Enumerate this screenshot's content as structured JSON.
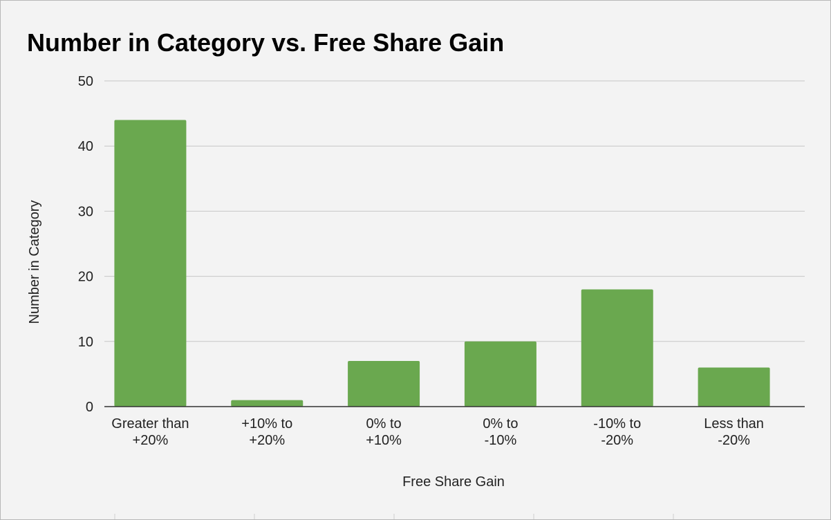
{
  "chart_data": {
    "type": "bar",
    "title": "Number in Category vs. Free Share Gain",
    "xlabel": "Free Share Gain",
    "ylabel": "Number in Category",
    "categories": [
      [
        "Greater than",
        "+20%"
      ],
      [
        "+10% to",
        "+20%"
      ],
      [
        "0% to",
        "+10%"
      ],
      [
        "0% to",
        "-10%"
      ],
      [
        "-10% to",
        "-20%"
      ],
      [
        "Less than",
        "-20%"
      ]
    ],
    "values": [
      44,
      1,
      7,
      10,
      18,
      6
    ],
    "ylim": [
      0,
      50
    ],
    "yticks": [
      0,
      10,
      20,
      30,
      40,
      50
    ],
    "grid": true,
    "legend": "none",
    "bar_color": "#6aa84f"
  }
}
